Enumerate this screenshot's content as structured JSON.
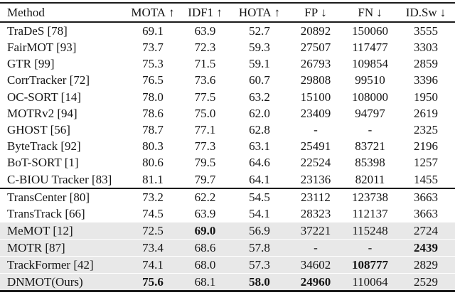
{
  "colors": {
    "text": "#141414",
    "rule": "#1b1b1b",
    "highlight_row_bg": "#e8e8e8"
  },
  "table": {
    "header": [
      {
        "label": "Method",
        "arrow": ""
      },
      {
        "label": "MOTA",
        "arrow": "↑"
      },
      {
        "label": "IDF1",
        "arrow": "↑"
      },
      {
        "label": "HOTA",
        "arrow": "↑"
      },
      {
        "label": "FP",
        "arrow": "↓"
      },
      {
        "label": "FN",
        "arrow": "↓"
      },
      {
        "label": "ID.Sw",
        "arrow": "↓"
      }
    ],
    "groups": [
      {
        "rows": [
          {
            "method": "TraDeS [78]",
            "values": [
              "69.1",
              "63.9",
              "52.7",
              "20892",
              "150060",
              "3555"
            ]
          },
          {
            "method": "FairMOT [93]",
            "values": [
              "73.7",
              "72.3",
              "59.3",
              "27507",
              "117477",
              "3303"
            ]
          },
          {
            "method": "GTR [99]",
            "values": [
              "75.3",
              "71.5",
              "59.1",
              "26793",
              "109854",
              "2859"
            ]
          },
          {
            "method": "CorrTracker [72]",
            "values": [
              "76.5",
              "73.6",
              "60.7",
              "29808",
              "99510",
              "3396"
            ]
          },
          {
            "method": "OC-SORT [14]",
            "values": [
              "78.0",
              "77.5",
              "63.2",
              "15100",
              "108000",
              "1950"
            ]
          },
          {
            "method": "MOTRv2 [94]",
            "values": [
              "78.6",
              "75.0",
              "62.0",
              "23409",
              "94797",
              "2619"
            ]
          },
          {
            "method": "GHOST [56]",
            "values": [
              "78.7",
              "77.1",
              "62.8",
              "-",
              "-",
              "2325"
            ]
          },
          {
            "method": "ByteTrack [92]",
            "values": [
              "80.3",
              "77.3",
              "63.1",
              "25491",
              "83721",
              "2196"
            ]
          },
          {
            "method": "BoT-SORT [1]",
            "values": [
              "80.6",
              "79.5",
              "64.6",
              "22524",
              "85398",
              "1257"
            ]
          },
          {
            "method": "C-BIOU Tracker [83]",
            "values": [
              "81.1",
              "79.7",
              "64.1",
              "23136",
              "82011",
              "1455"
            ]
          }
        ]
      },
      {
        "rows": [
          {
            "method": "TransCenter [80]",
            "values": [
              "73.2",
              "62.2",
              "54.5",
              "23112",
              "123738",
              "3663"
            ]
          },
          {
            "method": "TransTrack [66]",
            "values": [
              "74.5",
              "63.9",
              "54.1",
              "28323",
              "112137",
              "3663"
            ]
          },
          {
            "method": "MeMOT [12]",
            "values": [
              "72.5",
              "69.0",
              "56.9",
              "37221",
              "115248",
              "2724"
            ],
            "highlight": true,
            "bold_cols": [
              1
            ]
          },
          {
            "method": "MOTR [87]",
            "values": [
              "73.4",
              "68.6",
              "57.8",
              "-",
              "-",
              "2439"
            ],
            "highlight": true,
            "bold_cols": [
              5
            ]
          },
          {
            "method": "TrackFormer [42]",
            "values": [
              "74.1",
              "68.0",
              "57.3",
              "34602",
              "108777",
              "2829"
            ],
            "highlight": true,
            "bold_cols": [
              4
            ]
          },
          {
            "method": "DNMOT(Ours)",
            "values": [
              "75.6",
              "68.1",
              "58.0",
              "24960",
              "110064",
              "2529"
            ],
            "highlight": true,
            "bold_cols": [
              0,
              2,
              3
            ]
          }
        ]
      }
    ]
  }
}
